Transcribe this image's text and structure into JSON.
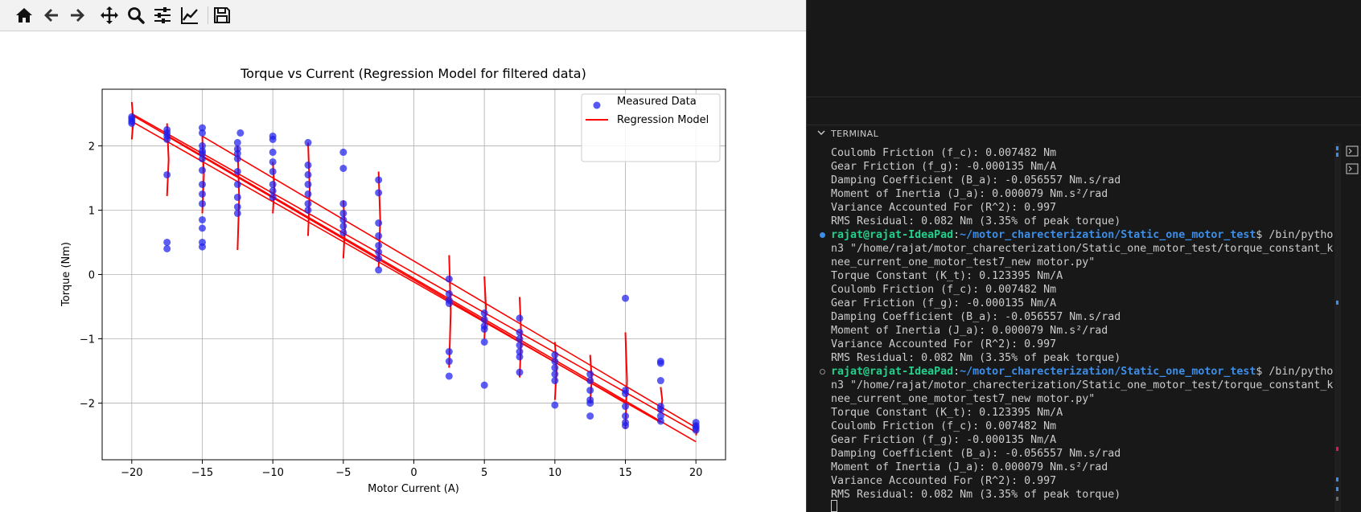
{
  "toolbar": {
    "icons": [
      "home-icon",
      "back-icon",
      "forward-icon",
      "pan-icon",
      "zoom-icon",
      "configure-subplots-icon",
      "edit-axis-icon",
      "save-icon"
    ]
  },
  "chart_data": {
    "type": "scatter",
    "title": "Torque vs Current (Regression Model for filtered data)",
    "xlabel": "Motor Current (A)",
    "ylabel": "Torque (Nm)",
    "xlim": [
      -22.1,
      22.1
    ],
    "ylim": [
      -2.88,
      2.88
    ],
    "xticks": [
      -20,
      -15,
      -10,
      -5,
      0,
      5,
      10,
      15,
      20
    ],
    "yticks": [
      -2,
      -1,
      0,
      1,
      2
    ],
    "xtick_labels": [
      "−20",
      "−15",
      "−10",
      "−5",
      "0",
      "5",
      "10",
      "15",
      "20"
    ],
    "ytick_labels": [
      "−2",
      "−1",
      "0",
      "1",
      "2"
    ],
    "grid": true,
    "legend": {
      "placement": "top-right",
      "entries": [
        "Measured Data",
        "Regression Model"
      ]
    },
    "colors": {
      "measured": "#1f1fef",
      "regression": "#ff0000"
    },
    "series": [
      {
        "name": "Measured Data",
        "kind": "scatter",
        "points": [
          [
            -20,
            2.35
          ],
          [
            -20,
            2.38
          ],
          [
            -20,
            2.42
          ],
          [
            -20,
            2.45
          ],
          [
            -17.5,
            2.25
          ],
          [
            -17.5,
            2.2
          ],
          [
            -17.5,
            2.15
          ],
          [
            -17.5,
            2.1
          ],
          [
            -17.5,
            1.55
          ],
          [
            -17.5,
            0.5
          ],
          [
            -17.5,
            0.4
          ],
          [
            -15,
            2.28
          ],
          [
            -15,
            2.2
          ],
          [
            -15,
            2.0
          ],
          [
            -15,
            1.92
          ],
          [
            -15,
            1.88
          ],
          [
            -15,
            1.8
          ],
          [
            -15,
            1.62
          ],
          [
            -15,
            1.4
          ],
          [
            -15,
            1.25
          ],
          [
            -15,
            1.1
          ],
          [
            -15,
            0.85
          ],
          [
            -15,
            0.72
          ],
          [
            -15,
            0.5
          ],
          [
            -15,
            0.43
          ],
          [
            -12.5,
            2.05
          ],
          [
            -12.5,
            1.95
          ],
          [
            -12.5,
            1.88
          ],
          [
            -12.5,
            1.8
          ],
          [
            -12.5,
            1.6
          ],
          [
            -12.5,
            1.4
          ],
          [
            -12.5,
            1.2
          ],
          [
            -12.5,
            1.05
          ],
          [
            -12.5,
            0.95
          ],
          [
            -12.3,
            2.2
          ],
          [
            -10,
            2.15
          ],
          [
            -10,
            2.1
          ],
          [
            -10,
            1.9
          ],
          [
            -10,
            1.75
          ],
          [
            -10,
            1.6
          ],
          [
            -10,
            1.4
          ],
          [
            -10,
            1.3
          ],
          [
            -10,
            1.2
          ],
          [
            -7.5,
            2.05
          ],
          [
            -7.5,
            1.7
          ],
          [
            -7.5,
            1.55
          ],
          [
            -7.5,
            1.4
          ],
          [
            -7.5,
            1.25
          ],
          [
            -7.5,
            1.1
          ],
          [
            -7.5,
            1.0
          ],
          [
            -5,
            1.9
          ],
          [
            -5,
            1.65
          ],
          [
            -5,
            1.1
          ],
          [
            -5,
            0.95
          ],
          [
            -5,
            0.85
          ],
          [
            -5,
            0.75
          ],
          [
            -5,
            0.65
          ],
          [
            -2.5,
            1.47
          ],
          [
            -2.5,
            1.27
          ],
          [
            -2.5,
            0.8
          ],
          [
            -2.5,
            0.6
          ],
          [
            -2.5,
            0.45
          ],
          [
            -2.5,
            0.35
          ],
          [
            -2.5,
            0.25
          ],
          [
            -2.5,
            0.07
          ],
          [
            2.5,
            -0.07
          ],
          [
            2.5,
            -0.3
          ],
          [
            2.5,
            -0.4
          ],
          [
            2.5,
            -0.45
          ],
          [
            2.5,
            -1.2
          ],
          [
            2.5,
            -1.35
          ],
          [
            2.5,
            -1.58
          ],
          [
            5,
            -0.6
          ],
          [
            5,
            -0.7
          ],
          [
            5,
            -0.8
          ],
          [
            5,
            -0.85
          ],
          [
            5,
            -1.05
          ],
          [
            5,
            -1.72
          ],
          [
            7.5,
            -0.68
          ],
          [
            7.5,
            -0.9
          ],
          [
            7.5,
            -1.0
          ],
          [
            7.5,
            -1.1
          ],
          [
            7.5,
            -1.2
          ],
          [
            7.5,
            -1.28
          ],
          [
            7.5,
            -1.52
          ],
          [
            10,
            -1.25
          ],
          [
            10,
            -1.35
          ],
          [
            10,
            -1.45
          ],
          [
            10,
            -1.55
          ],
          [
            10,
            -1.65
          ],
          [
            10,
            -2.03
          ],
          [
            12.5,
            -1.55
          ],
          [
            12.5,
            -1.65
          ],
          [
            12.5,
            -1.8
          ],
          [
            12.5,
            -1.95
          ],
          [
            12.5,
            -2.0
          ],
          [
            12.5,
            -2.2
          ],
          [
            15,
            -0.37
          ],
          [
            15,
            -1.8
          ],
          [
            15,
            -1.85
          ],
          [
            15,
            -2.05
          ],
          [
            15,
            -2.2
          ],
          [
            15,
            -2.3
          ],
          [
            15,
            -2.35
          ],
          [
            17.5,
            -1.35
          ],
          [
            17.5,
            -1.38
          ],
          [
            17.5,
            -1.65
          ],
          [
            17.5,
            -2.05
          ],
          [
            17.5,
            -2.1
          ],
          [
            17.5,
            -2.2
          ],
          [
            17.5,
            -2.28
          ],
          [
            20,
            -2.3
          ],
          [
            20,
            -2.35
          ],
          [
            20,
            -2.38
          ],
          [
            20,
            -2.42
          ]
        ]
      },
      {
        "name": "Regression Model",
        "kind": "line",
        "segments": [
          [
            [
              -20,
              2.48
            ],
            [
              20,
              -2.6
            ]
          ],
          [
            [
              -20,
              2.5
            ],
            [
              20,
              -2.45
            ]
          ],
          [
            [
              -15,
              2.15
            ],
            [
              20,
              -2.38
            ]
          ],
          [
            [
              -17.5,
              2.15
            ],
            [
              15,
              -2.0
            ]
          ],
          [
            [
              -20,
              2.38
            ],
            [
              17.5,
              -2.3
            ]
          ]
        ],
        "spikes": [
          [
            -20,
            2.1,
            2.68
          ],
          [
            -17.5,
            1.22,
            2.35
          ],
          [
            -15,
            0.95,
            2.15
          ],
          [
            -12.5,
            0.38,
            2.0
          ],
          [
            -10,
            0.95,
            1.75
          ],
          [
            -7.5,
            0.6,
            2.05
          ],
          [
            -5,
            0.25,
            1.15
          ],
          [
            -2.5,
            0.1,
            1.6
          ],
          [
            2.5,
            -1.45,
            0.3
          ],
          [
            5,
            -1.0,
            -0.03
          ],
          [
            7.5,
            -1.6,
            -0.35
          ],
          [
            10,
            -1.95,
            -1.05
          ],
          [
            12.5,
            -2.0,
            -1.25
          ],
          [
            15,
            -2.4,
            -0.9
          ],
          [
            17.5,
            -2.15,
            -1.75
          ],
          [
            20,
            -2.5,
            -2.3
          ]
        ]
      }
    ]
  },
  "terminal": {
    "title": "TERMINAL",
    "lines": [
      {
        "type": "text",
        "text": "Coulomb Friction (f_c): 0.007482 Nm"
      },
      {
        "type": "text",
        "text": "Gear Friction (f_g): -0.000135 Nm/A"
      },
      {
        "type": "text",
        "text": "Damping Coefficient (B_a): -0.056557 Nm.s/rad"
      },
      {
        "type": "text",
        "text": "Moment of Inertia (J_a): 0.000079 Nm.s²/rad"
      },
      {
        "type": "text",
        "text": "Variance Accounted For (R^2): 0.997"
      },
      {
        "type": "text",
        "text": "RMS Residual: 0.082 Nm (3.35% of peak torque)"
      },
      {
        "type": "prompt",
        "status": "filled",
        "user": "rajat@rajat-IdeaPad",
        "path": "~/motor_charecterization/Static_one_motor_test",
        "cmd": "$ /bin/pytho"
      },
      {
        "type": "text",
        "text": "n3 \"/home/rajat/motor_charecterization/Static_one_motor_test/torque_constant_k"
      },
      {
        "type": "text",
        "text": "nee_current_one_motor_test7_new motor.py\""
      },
      {
        "type": "text",
        "text": "Torque Constant (K_t): 0.123395 Nm/A"
      },
      {
        "type": "text",
        "text": "Coulomb Friction (f_c): 0.007482 Nm"
      },
      {
        "type": "text",
        "text": "Gear Friction (f_g): -0.000135 Nm/A"
      },
      {
        "type": "text",
        "text": "Damping Coefficient (B_a): -0.056557 Nm.s/rad"
      },
      {
        "type": "text",
        "text": "Moment of Inertia (J_a): 0.000079 Nm.s²/rad"
      },
      {
        "type": "text",
        "text": "Variance Accounted For (R^2): 0.997"
      },
      {
        "type": "text",
        "text": "RMS Residual: 0.082 Nm (3.35% of peak torque)"
      },
      {
        "type": "prompt",
        "status": "hollow",
        "user": "rajat@rajat-IdeaPad",
        "path": "~/motor_charecterization/Static_one_motor_test",
        "cmd": "$ /bin/pytho"
      },
      {
        "type": "text",
        "text": "n3 \"/home/rajat/motor_charecterization/Static_one_motor_test/torque_constant_k"
      },
      {
        "type": "text",
        "text": "nee_current_one_motor_test7_new motor.py\""
      },
      {
        "type": "text",
        "text": "Torque Constant (K_t): 0.123395 Nm/A"
      },
      {
        "type": "text",
        "text": "Coulomb Friction (f_c): 0.007482 Nm"
      },
      {
        "type": "text",
        "text": "Gear Friction (f_g): -0.000135 Nm/A"
      },
      {
        "type": "text",
        "text": "Damping Coefficient (B_a): -0.056557 Nm.s/rad"
      },
      {
        "type": "text",
        "text": "Moment of Inertia (J_a): 0.000079 Nm.s²/rad"
      },
      {
        "type": "text",
        "text": "Variance Accounted For (R^2): 0.997"
      },
      {
        "type": "text",
        "text": "RMS Residual: 0.082 Nm (3.35% of peak torque)"
      }
    ],
    "colors": {
      "user": "#23d18b",
      "path": "#3b8eea",
      "text": "#cccccc"
    }
  }
}
